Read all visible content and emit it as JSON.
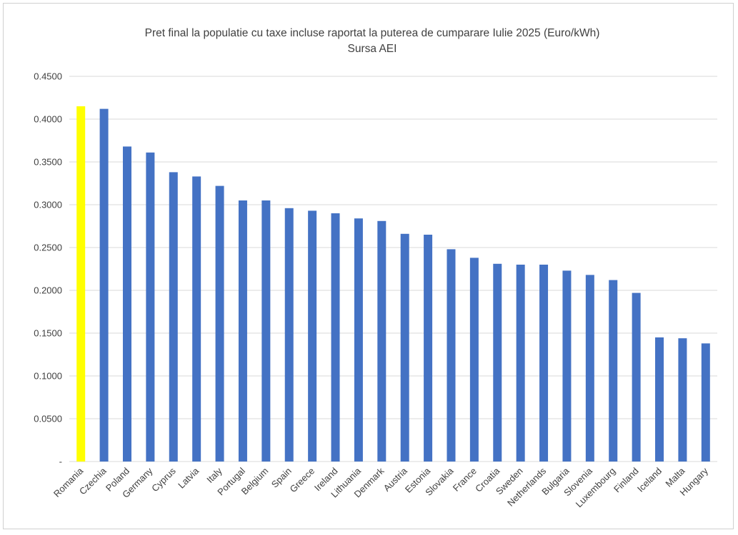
{
  "chart_data": {
    "type": "bar",
    "title": "Pret final la populatie cu taxe incluse raportat la puterea de cumparare Iulie 2025 (Euro/kWh)",
    "subtitle": "Sursa AEI",
    "xlabel": "",
    "ylabel": "",
    "ylim": [
      0,
      0.45
    ],
    "y_ticks": [
      "-",
      "0.0500",
      "0.1000",
      "0.1500",
      "0.2000",
      "0.2500",
      "0.3000",
      "0.3500",
      "0.4000",
      "0.4500"
    ],
    "grid": true,
    "legend": "none",
    "categories": [
      "Romania",
      "Czechia",
      "Poland",
      "Germany",
      "Cyprus",
      "Latvia",
      "Italy",
      "Portugal",
      "Belgium",
      "Spain",
      "Greece",
      "Ireland",
      "Lithuania",
      "Denmark",
      "Austria",
      "Estonia",
      "Slovakia",
      "France",
      "Croatia",
      "Sweden",
      "Netherlands",
      "Bulgaria",
      "Slovenia",
      "Luxembourg",
      "Finland",
      "Iceland",
      "Malta",
      "Hungary"
    ],
    "values": [
      0.415,
      0.412,
      0.368,
      0.361,
      0.338,
      0.333,
      0.322,
      0.305,
      0.305,
      0.296,
      0.293,
      0.29,
      0.284,
      0.281,
      0.266,
      0.265,
      0.248,
      0.238,
      0.231,
      0.23,
      0.23,
      0.223,
      0.218,
      0.212,
      0.197,
      0.145,
      0.144,
      0.138
    ],
    "colors": {
      "default_bar": "#4472c4",
      "highlight_bar": "#ffff00",
      "highlight_category": "Romania",
      "gridline": "#d9d9d9",
      "text": "#404040"
    }
  }
}
